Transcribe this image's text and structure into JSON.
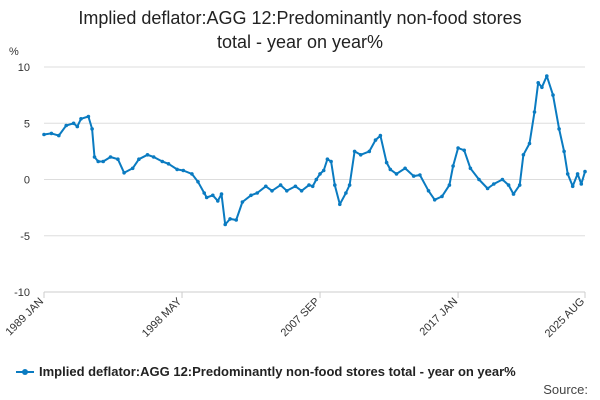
{
  "title": {
    "line1": "Implied deflator:AGG 12:Predominantly non-food stores",
    "line2": "total - year on year%"
  },
  "source_label": "Source:",
  "legend_label": "Implied deflator:AGG 12:Predominantly non-food stores total - year on year%",
  "colors": {
    "series": "#0a7bc1",
    "grid": "#dddddd",
    "axis": "#cccccc"
  },
  "chart_data": {
    "type": "line",
    "title": "Implied deflator:AGG 12:Predominantly non-food stores total - year on year%",
    "ylabel": "%",
    "xlabel": "",
    "ylim": [
      -10,
      10
    ],
    "yticks": [
      10,
      5,
      0,
      -5,
      -10
    ],
    "xlim": [
      "1989 JAN",
      "2025 AUG"
    ],
    "xticks": [
      "1989 JAN",
      "1998 MAY",
      "2007 SEP",
      "2017 JAN",
      "2025 AUG"
    ],
    "grid": "horizontal",
    "legend_position": "bottom",
    "markers": true,
    "series": [
      {
        "name": "Implied deflator:AGG 12:Predominantly non-food stores total - year on year%",
        "x": [
          "1989-01",
          "1989-07",
          "1990-01",
          "1990-07",
          "1991-01",
          "1991-04",
          "1991-07",
          "1992-01",
          "1992-04",
          "1992-06",
          "1992-09",
          "1993-01",
          "1993-07",
          "1994-01",
          "1994-06",
          "1995-01",
          "1995-06",
          "1996-01",
          "1996-06",
          "1997-01",
          "1997-06",
          "1998-01",
          "1998-06",
          "1999-01",
          "1999-06",
          "1999-11",
          "2000-01",
          "2000-06",
          "2000-10",
          "2001-01",
          "2001-04",
          "2001-08",
          "2002-01",
          "2002-06",
          "2003-01",
          "2003-06",
          "2004-01",
          "2004-06",
          "2005-01",
          "2005-06",
          "2006-01",
          "2006-06",
          "2006-12",
          "2007-03",
          "2007-06",
          "2007-09",
          "2007-12",
          "2008-03",
          "2008-06",
          "2008-09",
          "2009-01",
          "2009-06",
          "2009-09",
          "2010-01",
          "2010-06",
          "2011-01",
          "2011-06",
          "2011-10",
          "2012-03",
          "2012-06",
          "2012-11",
          "2013-06",
          "2014-01",
          "2014-06",
          "2015-01",
          "2015-06",
          "2015-12",
          "2016-06",
          "2016-09",
          "2017-01",
          "2017-06",
          "2017-11",
          "2018-06",
          "2019-01",
          "2019-06",
          "2020-01",
          "2020-06",
          "2020-10",
          "2021-03",
          "2021-06",
          "2021-11",
          "2022-03",
          "2022-06",
          "2022-09",
          "2023-01",
          "2023-06",
          "2023-11",
          "2024-03",
          "2024-06",
          "2024-10",
          "2025-02",
          "2025-05",
          "2025-08"
        ],
        "values": [
          4.0,
          4.1,
          3.9,
          4.8,
          5.0,
          4.7,
          5.4,
          5.6,
          4.5,
          2.0,
          1.6,
          1.6,
          2.0,
          1.8,
          0.6,
          1.0,
          1.8,
          2.2,
          2.0,
          1.6,
          1.4,
          0.9,
          0.8,
          0.5,
          -0.2,
          -1.2,
          -1.6,
          -1.4,
          -1.9,
          -1.3,
          -4.0,
          -3.5,
          -3.6,
          -2.0,
          -1.4,
          -1.2,
          -0.6,
          -1.0,
          -0.5,
          -1.0,
          -0.6,
          -1.0,
          -0.5,
          -0.6,
          0.0,
          0.5,
          0.8,
          1.8,
          1.6,
          -0.5,
          -2.2,
          -1.2,
          -0.5,
          2.5,
          2.2,
          2.5,
          3.5,
          3.9,
          1.5,
          0.9,
          0.5,
          1.0,
          0.3,
          0.4,
          -1.0,
          -1.8,
          -1.5,
          -0.5,
          1.2,
          2.8,
          2.6,
          1.0,
          0.0,
          -0.8,
          -0.4,
          0.0,
          -0.5,
          -1.3,
          -0.5,
          2.2,
          3.2,
          6.0,
          8.6,
          8.2,
          9.2,
          7.5,
          4.5,
          2.5,
          0.5,
          -0.6,
          0.5,
          -0.4,
          0.7
        ]
      }
    ]
  }
}
